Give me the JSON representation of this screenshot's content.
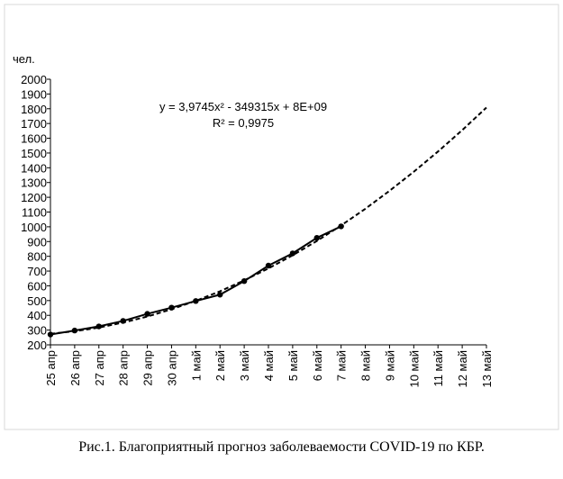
{
  "chart_data": {
    "type": "line",
    "y_label": "чел.",
    "annotations": [
      "y = 3,9745x² - 349315x + 8E+09",
      "R² = 0,9975"
    ],
    "categories": [
      "25 апр",
      "26 апр",
      "27 апр",
      "28 апр",
      "29 апр",
      "30 апр",
      "1 май",
      "2 май",
      "3 май",
      "4 май",
      "5 май",
      "6 май",
      "7 май",
      "8 май",
      "9 май",
      "10 май",
      "11 май",
      "12 май",
      "13 май"
    ],
    "series": [
      {
        "color": "#000000",
        "style": "solid",
        "markers": true,
        "values": [
          270,
          297,
          325,
          362,
          410,
          452,
          497,
          540,
          632,
          737,
          820,
          925,
          1003,
          null,
          null,
          null,
          null,
          null,
          null
        ]
      },
      {
        "color": "#000000",
        "style": "dashed",
        "markers": false,
        "values": [
          275,
          292,
          317,
          351,
          392,
          441,
          498,
          563,
          637,
          718,
          807,
          904,
          1009,
          1122,
          1244,
          1373,
          1510,
          1655,
          1808
        ]
      }
    ],
    "ylim": [
      200,
      2000
    ],
    "yticks": [
      200,
      300,
      400,
      500,
      600,
      700,
      800,
      900,
      1000,
      1100,
      1200,
      1300,
      1400,
      1500,
      1600,
      1700,
      1800,
      1900,
      2000
    ],
    "grid": false
  },
  "caption": "Рис.1. Благоприятный прогноз заболеваемости COVID-19 по КБР."
}
